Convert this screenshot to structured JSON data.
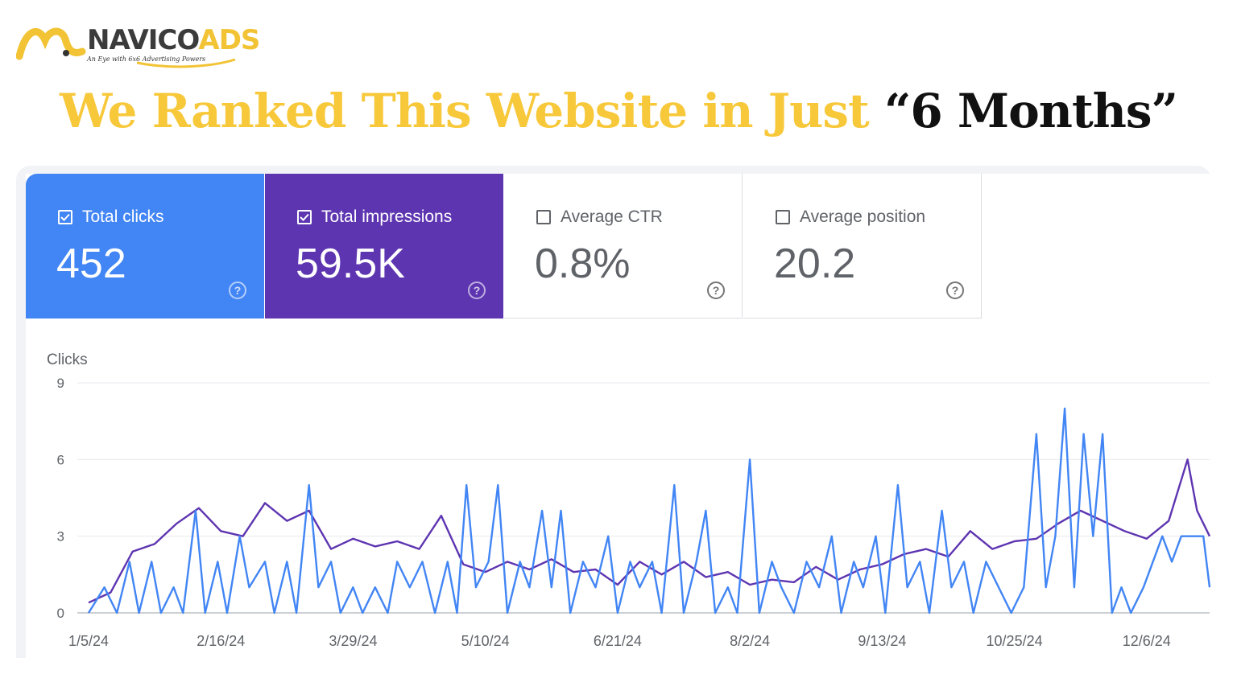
{
  "brand": {
    "name_part1": "NAVICO",
    "name_part2": "ADS",
    "tagline": "An Eye with 6x6 Advertising Powers"
  },
  "headline": {
    "part1": "We Ranked This Website in Just",
    "part2": "“6 Months”"
  },
  "metrics": [
    {
      "label": "Total clicks",
      "value": "452",
      "checked": true,
      "color": "#4285f4"
    },
    {
      "label": "Total impressions",
      "value": "59.5K",
      "checked": true,
      "color": "#5e35b1"
    },
    {
      "label": "Average CTR",
      "value": "0.8%",
      "checked": false,
      "color": "#ffffff"
    },
    {
      "label": "Average position",
      "value": "20.2",
      "checked": false,
      "color": "#ffffff"
    }
  ],
  "chart_data": {
    "type": "line",
    "ylabel": "Clicks",
    "ylim": [
      0,
      9
    ],
    "yticks": [
      0,
      3,
      6,
      9
    ],
    "xlim": [
      "2024-01-05",
      "2024-12-26"
    ],
    "xtick_labels": [
      "1/5/24",
      "2/16/24",
      "3/29/24",
      "5/10/24",
      "6/21/24",
      "8/2/24",
      "9/13/24",
      "10/25/24",
      "12/6/24"
    ],
    "grid": true,
    "series": [
      {
        "color": "#5e35b1",
        "points": [
          [
            "2024-01-05",
            0.4
          ],
          [
            "2024-01-12",
            0.8
          ],
          [
            "2024-01-19",
            2.4
          ],
          [
            "2024-01-26",
            2.7
          ],
          [
            "2024-02-02",
            3.5
          ],
          [
            "2024-02-09",
            4.1
          ],
          [
            "2024-02-16",
            3.2
          ],
          [
            "2024-02-23",
            3.0
          ],
          [
            "2024-03-01",
            4.3
          ],
          [
            "2024-03-08",
            3.6
          ],
          [
            "2024-03-15",
            4.0
          ],
          [
            "2024-03-22",
            2.5
          ],
          [
            "2024-03-29",
            2.9
          ],
          [
            "2024-04-05",
            2.6
          ],
          [
            "2024-04-12",
            2.8
          ],
          [
            "2024-04-19",
            2.5
          ],
          [
            "2024-04-26",
            3.8
          ],
          [
            "2024-05-03",
            1.9
          ],
          [
            "2024-05-10",
            1.6
          ],
          [
            "2024-05-17",
            2.0
          ],
          [
            "2024-05-24",
            1.7
          ],
          [
            "2024-05-31",
            2.1
          ],
          [
            "2024-06-07",
            1.6
          ],
          [
            "2024-06-14",
            1.7
          ],
          [
            "2024-06-21",
            1.1
          ],
          [
            "2024-06-28",
            2.0
          ],
          [
            "2024-07-05",
            1.5
          ],
          [
            "2024-07-12",
            2.0
          ],
          [
            "2024-07-19",
            1.4
          ],
          [
            "2024-07-26",
            1.6
          ],
          [
            "2024-08-02",
            1.1
          ],
          [
            "2024-08-09",
            1.3
          ],
          [
            "2024-08-16",
            1.2
          ],
          [
            "2024-08-23",
            1.8
          ],
          [
            "2024-08-30",
            1.3
          ],
          [
            "2024-09-06",
            1.7
          ],
          [
            "2024-09-13",
            1.9
          ],
          [
            "2024-09-20",
            2.3
          ],
          [
            "2024-09-27",
            2.5
          ],
          [
            "2024-10-04",
            2.2
          ],
          [
            "2024-10-11",
            3.2
          ],
          [
            "2024-10-18",
            2.5
          ],
          [
            "2024-10-25",
            2.8
          ],
          [
            "2024-11-01",
            2.9
          ],
          [
            "2024-11-08",
            3.5
          ],
          [
            "2024-11-15",
            4.0
          ],
          [
            "2024-11-22",
            3.6
          ],
          [
            "2024-11-29",
            3.2
          ],
          [
            "2024-12-06",
            2.9
          ],
          [
            "2024-12-13",
            3.6
          ],
          [
            "2024-12-19",
            6.0
          ],
          [
            "2024-12-22",
            4.0
          ],
          [
            "2024-12-26",
            3.0
          ]
        ]
      },
      {
        "color": "#4285f4",
        "points": [
          [
            "2024-01-05",
            0
          ],
          [
            "2024-01-10",
            1
          ],
          [
            "2024-01-14",
            0
          ],
          [
            "2024-01-18",
            2
          ],
          [
            "2024-01-21",
            0
          ],
          [
            "2024-01-25",
            2
          ],
          [
            "2024-01-28",
            0
          ],
          [
            "2024-02-01",
            1
          ],
          [
            "2024-02-04",
            0
          ],
          [
            "2024-02-08",
            4
          ],
          [
            "2024-02-11",
            0
          ],
          [
            "2024-02-15",
            2
          ],
          [
            "2024-02-18",
            0
          ],
          [
            "2024-02-22",
            3
          ],
          [
            "2024-02-25",
            1
          ],
          [
            "2024-03-01",
            2
          ],
          [
            "2024-03-04",
            0
          ],
          [
            "2024-03-08",
            2
          ],
          [
            "2024-03-11",
            0
          ],
          [
            "2024-03-15",
            5
          ],
          [
            "2024-03-18",
            1
          ],
          [
            "2024-03-22",
            2
          ],
          [
            "2024-03-25",
            0
          ],
          [
            "2024-03-29",
            1
          ],
          [
            "2024-04-01",
            0
          ],
          [
            "2024-04-05",
            1
          ],
          [
            "2024-04-09",
            0
          ],
          [
            "2024-04-12",
            2
          ],
          [
            "2024-04-16",
            1
          ],
          [
            "2024-04-20",
            2
          ],
          [
            "2024-04-24",
            0
          ],
          [
            "2024-04-28",
            2
          ],
          [
            "2024-05-01",
            0
          ],
          [
            "2024-05-04",
            5
          ],
          [
            "2024-05-07",
            1
          ],
          [
            "2024-05-11",
            2
          ],
          [
            "2024-05-14",
            5
          ],
          [
            "2024-05-17",
            0
          ],
          [
            "2024-05-21",
            2
          ],
          [
            "2024-05-24",
            1
          ],
          [
            "2024-05-28",
            4
          ],
          [
            "2024-05-31",
            1
          ],
          [
            "2024-06-03",
            4
          ],
          [
            "2024-06-06",
            0
          ],
          [
            "2024-06-10",
            2
          ],
          [
            "2024-06-14",
            1
          ],
          [
            "2024-06-18",
            3
          ],
          [
            "2024-06-21",
            0
          ],
          [
            "2024-06-25",
            2
          ],
          [
            "2024-06-28",
            1
          ],
          [
            "2024-07-02",
            2
          ],
          [
            "2024-07-05",
            0
          ],
          [
            "2024-07-09",
            5
          ],
          [
            "2024-07-12",
            0
          ],
          [
            "2024-07-16",
            2
          ],
          [
            "2024-07-19",
            4
          ],
          [
            "2024-07-22",
            0
          ],
          [
            "2024-07-26",
            1
          ],
          [
            "2024-07-29",
            0
          ],
          [
            "2024-08-02",
            6
          ],
          [
            "2024-08-05",
            0
          ],
          [
            "2024-08-09",
            2
          ],
          [
            "2024-08-12",
            1
          ],
          [
            "2024-08-16",
            0
          ],
          [
            "2024-08-20",
            2
          ],
          [
            "2024-08-24",
            1
          ],
          [
            "2024-08-28",
            3
          ],
          [
            "2024-08-31",
            0
          ],
          [
            "2024-09-04",
            2
          ],
          [
            "2024-09-07",
            1
          ],
          [
            "2024-09-11",
            3
          ],
          [
            "2024-09-14",
            0
          ],
          [
            "2024-09-18",
            5
          ],
          [
            "2024-09-21",
            1
          ],
          [
            "2024-09-25",
            2
          ],
          [
            "2024-09-28",
            0
          ],
          [
            "2024-10-02",
            4
          ],
          [
            "2024-10-05",
            1
          ],
          [
            "2024-10-09",
            2
          ],
          [
            "2024-10-12",
            0
          ],
          [
            "2024-10-16",
            2
          ],
          [
            "2024-10-20",
            1
          ],
          [
            "2024-10-24",
            0
          ],
          [
            "2024-10-28",
            1
          ],
          [
            "2024-11-01",
            7
          ],
          [
            "2024-11-04",
            1
          ],
          [
            "2024-11-07",
            3
          ],
          [
            "2024-11-10",
            8
          ],
          [
            "2024-11-13",
            1
          ],
          [
            "2024-11-16",
            7
          ],
          [
            "2024-11-19",
            3
          ],
          [
            "2024-11-22",
            7
          ],
          [
            "2024-11-25",
            0
          ],
          [
            "2024-11-28",
            1
          ],
          [
            "2024-12-01",
            0
          ],
          [
            "2024-12-05",
            1
          ],
          [
            "2024-12-08",
            2
          ],
          [
            "2024-12-11",
            3
          ],
          [
            "2024-12-14",
            2
          ],
          [
            "2024-12-17",
            3
          ],
          [
            "2024-12-21",
            3
          ],
          [
            "2024-12-24",
            3
          ],
          [
            "2024-12-26",
            1
          ]
        ]
      }
    ]
  }
}
